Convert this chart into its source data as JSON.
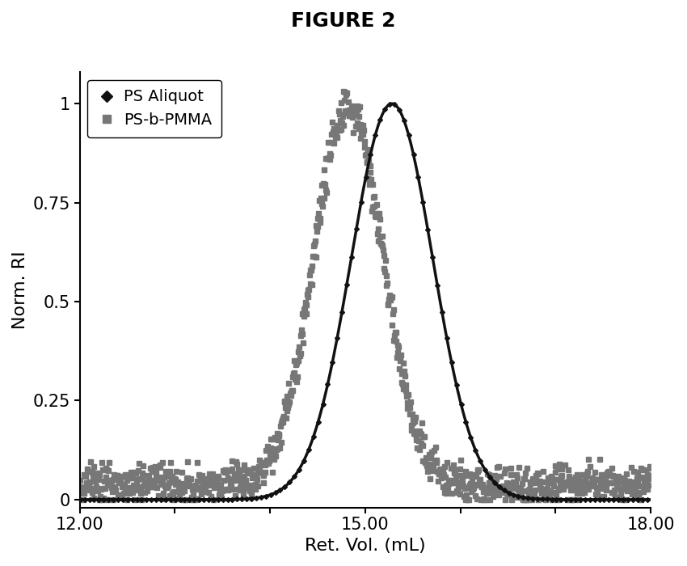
{
  "title": "FIGURE 2",
  "xlabel": "Ret. Vol. (mL)",
  "ylabel": "Norm. RI",
  "xlim": [
    12.0,
    18.0
  ],
  "ylim": [
    -0.02,
    1.08
  ],
  "xticks": [
    12.0,
    13.0,
    14.0,
    15.0,
    16.0,
    17.0,
    18.0
  ],
  "xticklabels": [
    "12.00",
    "",
    "",
    "15.00",
    "",
    "",
    "18.00"
  ],
  "yticks": [
    0,
    0.25,
    0.5,
    0.75,
    1.0
  ],
  "yticklabels": [
    "0",
    "0.25",
    "0.5",
    "0.75",
    "1"
  ],
  "ps_aliquot": {
    "peak": 15.28,
    "sigma": 0.43,
    "color": "#111111",
    "label": "PS Aliquot",
    "marker": "D",
    "markersize": 3,
    "linewidth": 2.5,
    "baseline": 0.0
  },
  "ps_b_pmma": {
    "peak": 14.82,
    "sigma": 0.36,
    "noise_amp": 0.025,
    "color": "#777777",
    "label": "PS-b-PMMA",
    "marker": "s",
    "markersize": 4.5,
    "baseline": 0.04
  },
  "background_color": "#ffffff",
  "title_fontsize": 18,
  "label_fontsize": 16,
  "tick_fontsize": 15,
  "legend_fontsize": 14,
  "fig_width": 8.5,
  "fig_height": 7.0
}
